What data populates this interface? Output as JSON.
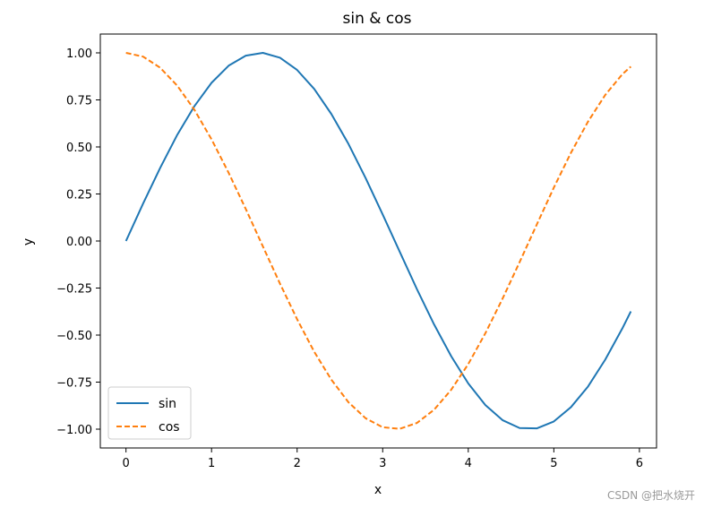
{
  "chart_data": {
    "type": "line",
    "title": "sin & cos",
    "xlabel": "x",
    "ylabel": "y",
    "xlim": [
      -0.3,
      6.2
    ],
    "ylim": [
      -1.1,
      1.1
    ],
    "xticks": [
      0,
      1,
      2,
      3,
      4,
      5,
      6
    ],
    "xtick_labels": [
      "0",
      "1",
      "2",
      "3",
      "4",
      "5",
      "6"
    ],
    "yticks": [
      1.0,
      0.75,
      0.5,
      0.25,
      0.0,
      -0.25,
      -0.5,
      -0.75,
      -1.0
    ],
    "ytick_labels": [
      "1.00",
      "0.75",
      "0.50",
      "0.25",
      "0.00",
      "−0.25",
      "−0.50",
      "−0.75",
      "−1.00"
    ],
    "x": [
      0.0,
      0.2,
      0.4,
      0.6,
      0.8,
      1.0,
      1.2,
      1.4,
      1.6,
      1.8,
      2.0,
      2.2,
      2.4,
      2.6,
      2.8,
      3.0,
      3.2,
      3.4,
      3.6,
      3.8,
      4.0,
      4.2,
      4.4,
      4.6,
      4.8,
      5.0,
      5.2,
      5.4,
      5.6,
      5.8,
      5.9
    ],
    "series": [
      {
        "name": "sin",
        "style": "solid",
        "color": "#1f77b4",
        "values": [
          0.0,
          0.199,
          0.389,
          0.565,
          0.717,
          0.841,
          0.932,
          0.985,
          1.0,
          0.974,
          0.909,
          0.808,
          0.675,
          0.516,
          0.335,
          0.141,
          -0.058,
          -0.256,
          -0.443,
          -0.612,
          -0.757,
          -0.872,
          -0.952,
          -0.994,
          -0.996,
          -0.959,
          -0.883,
          -0.773,
          -0.631,
          -0.465,
          -0.374
        ]
      },
      {
        "name": "cos",
        "style": "dashed",
        "color": "#ff7f0e",
        "values": [
          1.0,
          0.98,
          0.921,
          0.825,
          0.697,
          0.54,
          0.362,
          0.17,
          -0.029,
          -0.227,
          -0.416,
          -0.589,
          -0.737,
          -0.857,
          -0.942,
          -0.99,
          -0.998,
          -0.967,
          -0.897,
          -0.791,
          -0.654,
          -0.49,
          -0.307,
          -0.112,
          0.087,
          0.284,
          0.469,
          0.635,
          0.776,
          0.886,
          0.927
        ]
      }
    ],
    "legend": {
      "position": "lower-left",
      "entries": [
        "sin",
        "cos"
      ]
    },
    "grid": false
  },
  "watermark": "CSDN @把水烧开"
}
